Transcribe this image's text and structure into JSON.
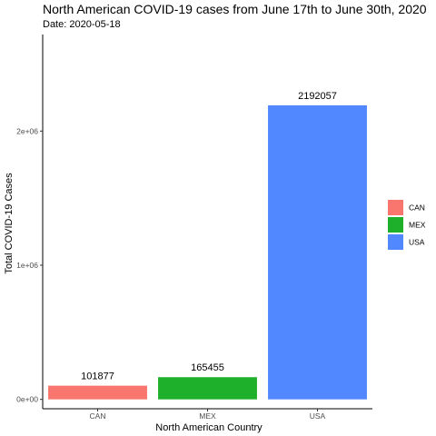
{
  "chart_data": {
    "type": "bar",
    "title": "North American COVID-19 cases from June 17th to June 30th, 2020",
    "subtitle": "Date: 2020-05-18",
    "xlabel": "North American Country",
    "ylabel": "Total COVID-19 Cases",
    "categories": [
      "CAN",
      "MEX",
      "USA"
    ],
    "values": [
      101877,
      165455,
      2192057
    ],
    "data_labels": [
      "101877",
      "165455",
      "2192057"
    ],
    "ylim": [
      -70000,
      2720000
    ],
    "y_ticks": [
      {
        "value": 0,
        "label": "0e+00"
      },
      {
        "value": 1000000,
        "label": "1e+06"
      },
      {
        "value": 2000000,
        "label": "2e+06"
      }
    ],
    "legend": {
      "placement": "right",
      "entries": [
        {
          "label": "CAN",
          "color": "#F8766D"
        },
        {
          "label": "MEX",
          "color": "#1FB02B"
        },
        {
          "label": "USA",
          "color": "#5288FF"
        }
      ]
    },
    "grid": false
  }
}
